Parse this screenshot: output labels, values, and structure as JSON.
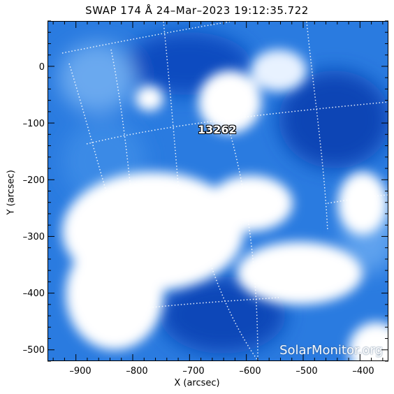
{
  "title": "SWAP 174 Å 24–Mar–2023 19:12:35.722",
  "active_region_label": "13262",
  "watermark": "SolarMonitor.org",
  "x_axis": {
    "label": "X (arcsec)",
    "ticks": [
      "–900",
      "–800",
      "–700",
      "–600",
      "–500",
      "–400"
    ]
  },
  "y_axis": {
    "label": "Y (arcsec)",
    "ticks": [
      "0",
      "–100",
      "–200",
      "–300",
      "–400",
      "–500"
    ]
  },
  "colors": {
    "frame": "#000000",
    "image_blue": "#1f6fd6",
    "image_dark": "#0b3aa3",
    "image_light": "#ffffff"
  },
  "image": {
    "instrument": "SWAP",
    "wavelength": "174 Å",
    "x_range": [
      -950,
      -350
    ],
    "y_range": [
      -520,
      80
    ]
  }
}
